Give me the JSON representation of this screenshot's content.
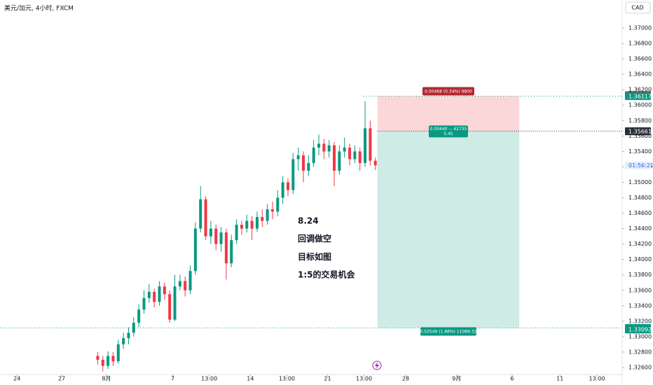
{
  "header": {
    "symbol": "美元/加元, 4小时, FXCM",
    "currency": "CAD",
    "countdown": "01:56:21"
  },
  "chart_data": {
    "type": "candlestick",
    "up_color": "#089981",
    "down_color": "#f23645",
    "open": [
      1.3275,
      1.327,
      1.3262,
      1.3275,
      1.3268,
      1.329,
      1.3298,
      1.3305,
      1.3318,
      1.3335,
      1.335,
      1.3358,
      1.3345,
      1.3365,
      1.3355,
      1.3322,
      1.3365,
      1.3372,
      1.336,
      1.3385,
      1.344,
      1.3478,
      1.343,
      1.344,
      1.342,
      1.3435,
      1.3395,
      1.3425,
      1.3445,
      1.344,
      1.345,
      1.344,
      1.3455,
      1.345,
      1.3465,
      1.3462,
      1.348,
      1.35,
      1.349,
      1.353,
      1.3535,
      1.3515,
      1.3525,
      1.3545,
      1.355,
      1.354,
      1.3548,
      1.3515,
      1.354,
      1.3545,
      1.353,
      1.354,
      1.3525,
      1.357,
      1.3528
    ],
    "high": [
      1.328,
      1.3275,
      1.3281,
      1.328,
      1.3296,
      1.3305,
      1.3312,
      1.3325,
      1.3342,
      1.336,
      1.3368,
      1.3362,
      1.3372,
      1.337,
      1.336,
      1.338,
      1.338,
      1.3378,
      1.3392,
      1.3448,
      1.3495,
      1.3482,
      1.345,
      1.3445,
      1.3442,
      1.344,
      1.3432,
      1.3452,
      1.345,
      1.3458,
      1.3456,
      1.3462,
      1.3465,
      1.3472,
      1.3475,
      1.349,
      1.3508,
      1.3505,
      1.3538,
      1.3545,
      1.354,
      1.3535,
      1.3555,
      1.3562,
      1.3556,
      1.3555,
      1.3552,
      1.3548,
      1.3558,
      1.355,
      1.3548,
      1.3545,
      1.3605,
      1.358,
      1.3532
    ],
    "low": [
      1.3264,
      1.3255,
      1.3258,
      1.3262,
      1.3265,
      1.3284,
      1.329,
      1.33,
      1.3312,
      1.333,
      1.3344,
      1.3338,
      1.334,
      1.3348,
      1.3318,
      1.332,
      1.336,
      1.3352,
      1.3355,
      1.338,
      1.3435,
      1.3425,
      1.342,
      1.3412,
      1.341,
      1.3374,
      1.339,
      1.342,
      1.3432,
      1.3435,
      1.3425,
      1.3436,
      1.3442,
      1.3445,
      1.3452,
      1.3456,
      1.3472,
      1.3482,
      1.3485,
      1.3515,
      1.35,
      1.3508,
      1.352,
      1.3535,
      1.353,
      1.3532,
      1.3495,
      1.351,
      1.3532,
      1.3522,
      1.3525,
      1.3515,
      1.352,
      1.3522,
      1.3516
    ],
    "close": [
      1.327,
      1.3262,
      1.3275,
      1.3268,
      1.329,
      1.3298,
      1.3305,
      1.3318,
      1.3335,
      1.335,
      1.3358,
      1.3345,
      1.3365,
      1.3355,
      1.3322,
      1.3365,
      1.3372,
      1.336,
      1.3385,
      1.344,
      1.3478,
      1.343,
      1.344,
      1.342,
      1.3435,
      1.3395,
      1.3425,
      1.3445,
      1.344,
      1.345,
      1.344,
      1.3455,
      1.345,
      1.3465,
      1.3462,
      1.348,
      1.35,
      1.349,
      1.353,
      1.3535,
      1.3515,
      1.3525,
      1.3545,
      1.355,
      1.354,
      1.3548,
      1.3515,
      1.354,
      1.3545,
      1.353,
      1.354,
      1.3525,
      1.357,
      1.3528,
      1.3522
    ],
    "xlim": [
      -19,
      102
    ],
    "xticks": [
      {
        "value": -15.7,
        "label": "24"
      },
      {
        "value": -7,
        "label": "27"
      },
      {
        "value": 1.7,
        "label": "8月"
      },
      {
        "value": 14.6,
        "label": "7"
      },
      {
        "value": 21.7,
        "label": "13:00"
      },
      {
        "value": 29.7,
        "label": "14"
      },
      {
        "value": 36.8,
        "label": "13:00"
      },
      {
        "value": 44.7,
        "label": "21"
      },
      {
        "value": 51.8,
        "label": "13:00"
      },
      {
        "value": 59.9,
        "label": "28"
      },
      {
        "value": 69.8,
        "label": "9月"
      },
      {
        "value": 80.6,
        "label": "6"
      },
      {
        "value": 89.9,
        "label": "11"
      },
      {
        "value": 97.1,
        "label": "13:00"
      }
    ],
    "ylim": [
      1.32509,
      1.37363
    ],
    "yticks": [
      {
        "value": 1.326,
        "label": "1.32600"
      },
      {
        "value": 1.328,
        "label": "1.32800"
      },
      {
        "value": 1.33,
        "label": "1.33000"
      },
      {
        "value": 1.332,
        "label": "1.33200"
      },
      {
        "value": 1.334,
        "label": "1.33400"
      },
      {
        "value": 1.336,
        "label": "1.33600"
      },
      {
        "value": 1.338,
        "label": "1.33800"
      },
      {
        "value": 1.34,
        "label": "1.34000"
      },
      {
        "value": 1.342,
        "label": "1.34200"
      },
      {
        "value": 1.344,
        "label": "1.34400"
      },
      {
        "value": 1.346,
        "label": "1.34600"
      },
      {
        "value": 1.348,
        "label": "1.34800"
      },
      {
        "value": 1.35,
        "label": "1.35000"
      },
      {
        "value": 1.352,
        "label": "1.35200"
      },
      {
        "value": 1.354,
        "label": "1.35400"
      },
      {
        "value": 1.356,
        "label": "1.35600"
      },
      {
        "value": 1.358,
        "label": "1.35800"
      },
      {
        "value": 1.36,
        "label": "1.36000"
      },
      {
        "value": 1.362,
        "label": "1.36200"
      },
      {
        "value": 1.364,
        "label": "1.36400"
      },
      {
        "value": 1.366,
        "label": "1.36600"
      },
      {
        "value": 1.368,
        "label": "1.36800"
      },
      {
        "value": 1.37,
        "label": "1.37000"
      }
    ],
    "annotation": [
      "8.24",
      "回调做空",
      "目标如图",
      "1:5的交易机会"
    ],
    "position": {
      "x_range": [
        54.4,
        82
      ],
      "stop": 1.36117,
      "entry": 1.35664,
      "target": 1.33112,
      "stop_label": "0.00468 (0.34%) 9800",
      "entry_label": [
        "0.00440 − 42735",
        "5.45"
      ],
      "target_label": "0.02549 (1.88%) 11089.32"
    },
    "price_labels": [
      {
        "value": 1.36129,
        "color": "#b22833"
      },
      {
        "value": 1.36117,
        "color": "#089981"
      },
      {
        "value": 1.35664,
        "color": "#089981"
      },
      {
        "value": 1.35661,
        "color": "#2a2e39"
      },
      {
        "value": 1.33112,
        "color": "#089981"
      },
      {
        "value": 1.33092,
        "color": "#089981"
      }
    ]
  }
}
